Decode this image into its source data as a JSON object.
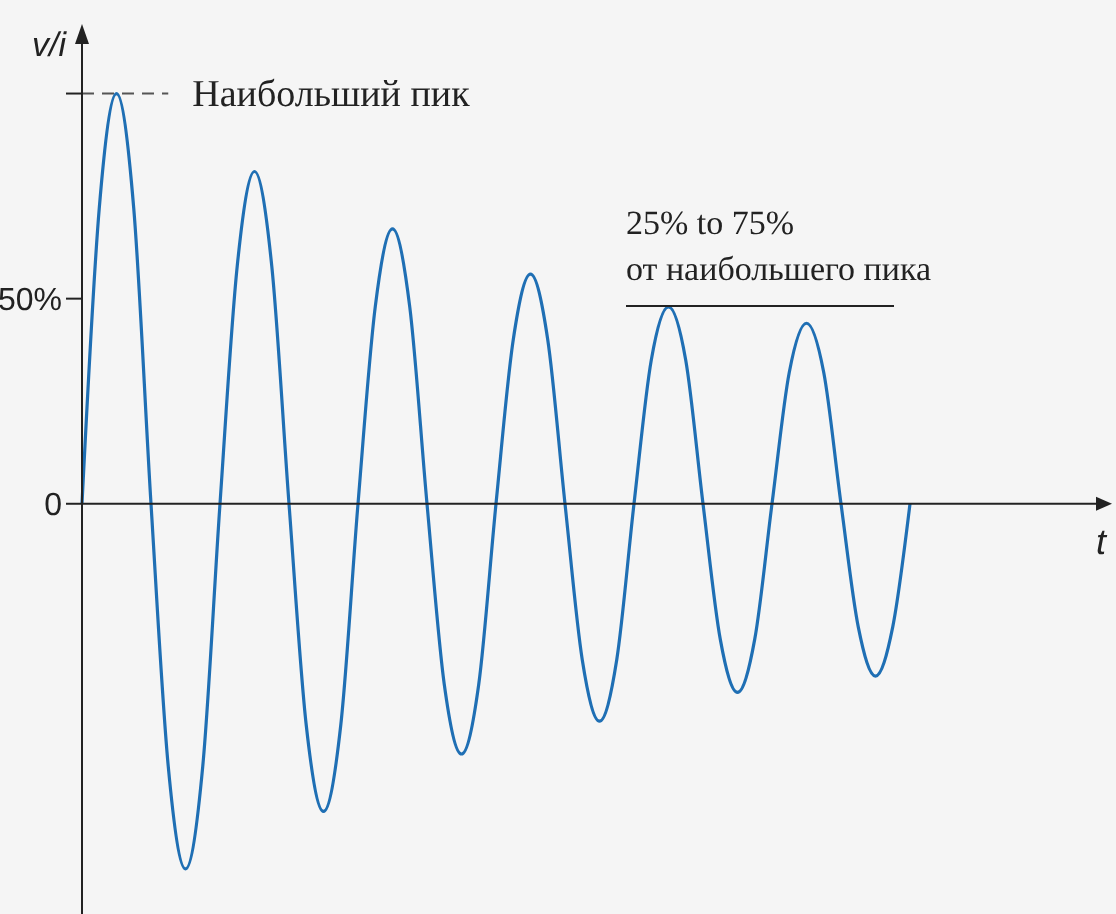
{
  "chart_data": {
    "type": "line",
    "xlabel": "t",
    "ylabel": "v/i",
    "categories": [
      null,
      null,
      null,
      null,
      null,
      null,
      null,
      null,
      null,
      null,
      null,
      null,
      null,
      null,
      null,
      null,
      null,
      null,
      null,
      null,
      null,
      null,
      null,
      null,
      null,
      null,
      null,
      null,
      null,
      null,
      null,
      null,
      null,
      null,
      null,
      null,
      null,
      null,
      null,
      null,
      null,
      null,
      null,
      null,
      null,
      null,
      null,
      null,
      null
    ],
    "series": [
      {
        "color": "#1f6fb4",
        "values": [
          0,
          72,
          100,
          72,
          0,
          -64,
          -89,
          -64,
          0,
          58,
          81,
          58,
          0,
          -54,
          -75,
          -54,
          0,
          48,
          67,
          48,
          0,
          -44,
          -61,
          -44,
          0,
          40,
          56,
          40,
          0,
          -38,
          -53,
          -38,
          0,
          35,
          48,
          35,
          0,
          -33,
          -46,
          -33,
          0,
          32,
          44,
          32,
          0,
          -30,
          -42,
          -30,
          0
        ]
      }
    ],
    "ylim": [
      -100,
      115
    ],
    "yticks": [
      0,
      {
        "value": 50,
        "label": "50%"
      },
      {
        "value": 100,
        "label": null
      }
    ],
    "marker": "none",
    "line_style": "solid",
    "ref_lines": [
      {
        "axis": "y",
        "value": 100,
        "label": "Наибольший пик",
        "line_style": "dashed",
        "color": "#555555"
      }
    ],
    "annotations": [
      "25% to 75%\nот наибольшего пика"
    ]
  }
}
